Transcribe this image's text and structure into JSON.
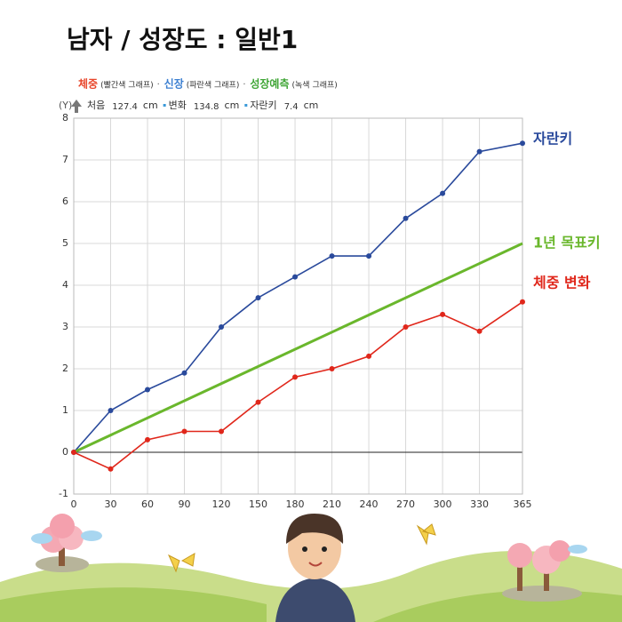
{
  "chart_data": {
    "type": "line",
    "title": "남자 / 성장도 : 일반1",
    "notes": [
      {
        "label": "체중",
        "desc": "(빨간색 그래프)",
        "color": "#e8452a"
      },
      {
        "label": "신장",
        "desc": "(파란색 그래프)",
        "color": "#3b7fd1"
      },
      {
        "label": "성장예측",
        "desc": "(녹색 그래프)",
        "color": "#3fa535"
      }
    ],
    "y_label": "(Y)",
    "info": [
      {
        "label": "처음",
        "value": 127.4,
        "unit": "cm"
      },
      {
        "label": "변화",
        "value": 134.8,
        "unit": "cm"
      },
      {
        "label": "자란키",
        "value": 7.4,
        "unit": "cm"
      }
    ],
    "x": [
      0,
      30,
      60,
      90,
      120,
      150,
      180,
      210,
      240,
      270,
      300,
      330,
      365
    ],
    "series": [
      {
        "name": "자란키",
        "color": "#2a4a9c",
        "values": [
          0,
          1,
          1.5,
          1.9,
          3,
          3.7,
          4.2,
          4.7,
          4.7,
          5.6,
          6.2,
          7.2,
          7.4
        ]
      },
      {
        "name": "1년 목표키",
        "color": "#6ab72c",
        "x": [
          0,
          365
        ],
        "values": [
          0,
          5
        ]
      },
      {
        "name": "체중 변화",
        "color": "#e0271b",
        "values": [
          0,
          -0.4,
          0.3,
          0.5,
          0.5,
          1.2,
          1.8,
          2.0,
          2.3,
          3.0,
          3.3,
          2.9,
          3.6
        ]
      }
    ],
    "xlim": [
      0,
      365
    ],
    "xticks": [
      0,
      30,
      60,
      90,
      120,
      150,
      180,
      210,
      240,
      270,
      300,
      330,
      365
    ],
    "ylim": [
      -1,
      8
    ],
    "yticks": [
      -1,
      0,
      1,
      2,
      3,
      4,
      5,
      6,
      7,
      8
    ],
    "grid": true
  }
}
